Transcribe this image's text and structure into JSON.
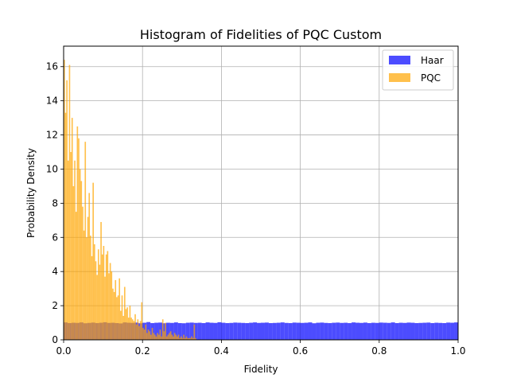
{
  "chart_data": {
    "type": "bar",
    "title": "Histogram of Fidelities of PQC Custom",
    "xlabel": "Fidelity",
    "ylabel": "Probability Density",
    "xlim": [
      0.0,
      1.0
    ],
    "ylim": [
      0,
      17.2
    ],
    "xticks": [
      "0.0",
      "0.2",
      "0.4",
      "0.6",
      "0.8",
      "1.0"
    ],
    "yticks": [
      "0",
      "2",
      "4",
      "6",
      "8",
      "10",
      "12",
      "14",
      "16"
    ],
    "grid": true,
    "legend_position": "top-right",
    "series": [
      {
        "name": "Haar",
        "color": "#0000ff",
        "opacity": 0.7,
        "bin_width": 0.01,
        "x_start": 0.0,
        "values": [
          1.02,
          0.98,
          1.0,
          0.99,
          1.02,
          0.97,
          0.99,
          1.01,
          0.98,
          1.0,
          1.03,
          0.99,
          1.0,
          0.98,
          0.96,
          1.02,
          1.0,
          0.99,
          1.01,
          0.97,
          1.0,
          1.04,
          0.98,
          1.0,
          1.01,
          0.97,
          1.0,
          0.99,
          1.02,
          0.98,
          0.97,
          1.0,
          1.01,
          0.99,
          1.0,
          0.98,
          1.02,
          1.0,
          0.99,
          1.03,
          1.0,
          0.98,
          0.99,
          1.01,
          1.0,
          0.99,
          0.98,
          1.0,
          1.02,
          0.99,
          1.0,
          1.01,
          0.98,
          0.99,
          1.0,
          1.02,
          0.99,
          0.98,
          1.01,
          1.0,
          0.99,
          1.0,
          1.02,
          0.97,
          1.0,
          1.01,
          0.99,
          0.98,
          1.0,
          1.01,
          0.99,
          1.0,
          0.98,
          1.02,
          1.0,
          0.99,
          1.01,
          0.98,
          1.0,
          0.99,
          1.01,
          1.0,
          0.99,
          1.02,
          0.98,
          1.0,
          0.99,
          1.01,
          1.0,
          0.98,
          0.99,
          1.0,
          1.01,
          0.98,
          1.0,
          0.99,
          0.98,
          1.01,
          1.0,
          1.02
        ]
      },
      {
        "name": "PQC",
        "color": "#ffa500",
        "opacity": 0.7,
        "bin_width": 0.00333,
        "x_start": 0.0,
        "values": [
          16.4,
          13.3,
          15.2,
          10.5,
          16.1,
          11.0,
          13.0,
          9.0,
          10.5,
          7.5,
          12.5,
          11.8,
          10.0,
          9.3,
          7.8,
          6.4,
          11.6,
          6.0,
          7.2,
          8.6,
          6.1,
          4.9,
          9.2,
          5.6,
          4.6,
          3.8,
          5.3,
          4.4,
          6.9,
          5.0,
          5.5,
          3.7,
          5.0,
          5.2,
          3.9,
          4.5,
          4.0,
          3.0,
          2.8,
          3.5,
          2.5,
          2.6,
          3.6,
          1.7,
          2.6,
          1.4,
          3.1,
          1.8,
          1.9,
          1.3,
          2.0,
          1.3,
          1.2,
          1.1,
          1.5,
          0.9,
          1.2,
          0.8,
          1.1,
          2.2,
          0.7,
          0.6,
          0.9,
          0.4,
          0.6,
          0.5,
          0.3,
          0.7,
          0.4,
          0.3,
          0.2,
          0.4,
          0.3,
          0.6,
          0.2,
          1.2,
          0.5,
          1.0,
          0.2,
          0.3,
          0.4,
          0.5,
          0.3,
          0.2,
          0.4,
          0.3,
          0.2,
          0.3,
          0.1,
          0.2,
          0.1,
          0.3,
          0.1,
          0.2,
          0.1,
          0.1,
          0.1,
          0.2,
          0.1,
          0.9,
          0.1,
          0.0
        ]
      }
    ]
  }
}
